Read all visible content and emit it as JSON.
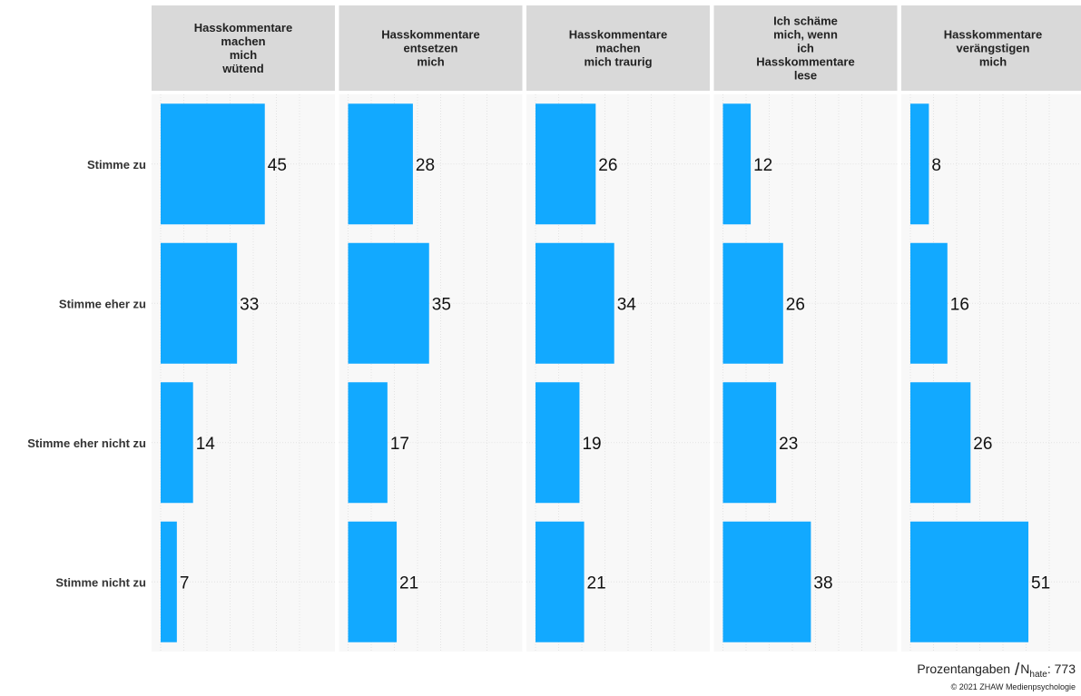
{
  "chart_data": {
    "type": "bar",
    "orientation": "horizontal",
    "layout": "facets",
    "categories": [
      "Stimme zu",
      "Stimme eher zu",
      "Stimme eher nicht zu",
      "Stimme nicht zu"
    ],
    "facets": [
      {
        "title": "Hasskommentare\nmachen\nmich\nwütend",
        "values": [
          45,
          33,
          14,
          7
        ]
      },
      {
        "title": "Hasskommentare\nentsetzen\nmich",
        "values": [
          28,
          35,
          17,
          21
        ]
      },
      {
        "title": "Hasskommentare\nmachen\nmich traurig",
        "values": [
          26,
          34,
          19,
          21
        ]
      },
      {
        "title": "Ich schäme\nmich, wenn\nich\nHasskommentare\nlese",
        "values": [
          12,
          26,
          23,
          38
        ]
      },
      {
        "title": "Hasskommentare\nverängstigen\nmich",
        "values": [
          8,
          16,
          26,
          51
        ]
      }
    ],
    "xlim": [
      0,
      60
    ],
    "grid": true,
    "bar_color": "#12a9ff",
    "panel_background": "#f8f8f8",
    "strip_background": "#d9d9d9"
  },
  "footer": {
    "note_prefix": "Prozentangaben",
    "note_n": "N",
    "note_n_sub": "hate",
    "note_n_value": ": 773",
    "copyright": "© 2021 ZHAW Medienpsychologie"
  }
}
